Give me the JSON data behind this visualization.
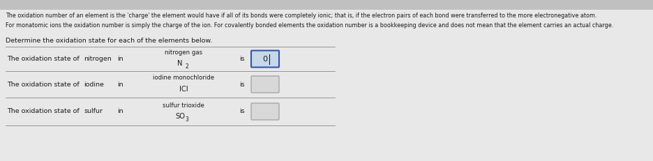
{
  "background_color": "#e8e8e8",
  "text_color": "#1a1a1a",
  "header_text1": "The oxidation number of an element is the 'charge' the element would have if all of its bonds were completely ionic; that is, if the electron pairs of each bond were transferred to the more electronegative atom.",
  "header_text2": "For monatomic ions the oxidation number is simply the charge of the ion. For covalently bonded elements the oxidation number is a bookkeeping device and does not mean that the element carries an actual charge.",
  "instruction": "Determine the oxidation state for each of the elements below.",
  "rows": [
    {
      "prefix": "The oxidation state of",
      "element": "nitrogen",
      "in_word": "in",
      "compound_name": "nitrogen gas",
      "formula_parts": [
        [
          "N",
          false
        ],
        [
          "2",
          true
        ]
      ],
      "is_text": "is",
      "box_style": "filled",
      "answer": "0"
    },
    {
      "prefix": "The oxidation state of",
      "element": "iodine",
      "in_word": "in",
      "compound_name": "iodine monochloride",
      "formula_parts": [
        [
          "ICl",
          false
        ]
      ],
      "is_text": "is",
      "box_style": "empty",
      "answer": ""
    },
    {
      "prefix": "The oxidation state of",
      "element": "sulfur",
      "in_word": "in",
      "compound_name": "sulfur trioxide",
      "formula_parts": [
        [
          "SO",
          false
        ],
        [
          "3",
          true
        ]
      ],
      "is_text": "is",
      "box_style": "empty",
      "answer": ""
    }
  ],
  "header_fontsize": 5.8,
  "label_fontsize": 6.8,
  "small_fontsize": 6.2,
  "formula_fontsize": 7.2,
  "subscript_fontsize": 5.5,
  "table_line_color": "#888888",
  "box_filled_face": "#c8d8ea",
  "box_filled_edge": "#3355aa",
  "box_empty_face": "#d8d8d8",
  "box_empty_edge": "#999999",
  "line_width": 0.6
}
